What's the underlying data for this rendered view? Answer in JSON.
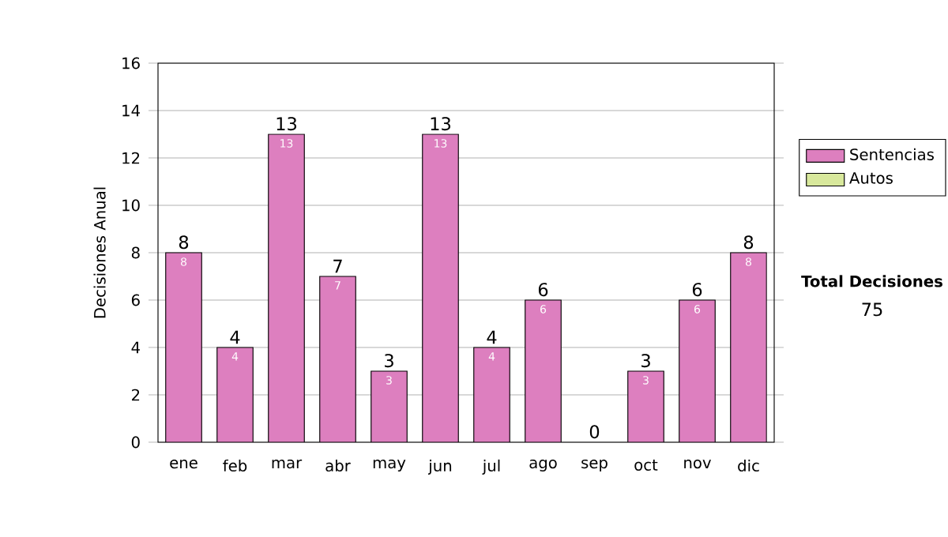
{
  "chart_data": {
    "type": "bar",
    "stacked": true,
    "ylabel": "Decisiones Anual",
    "categories": [
      "ene",
      "feb",
      "mar",
      "abr",
      "may",
      "jun",
      "jul",
      "ago",
      "sep",
      "oct",
      "nov",
      "dic"
    ],
    "series": [
      {
        "name": "Sentencias",
        "color": "#dd7fbf",
        "values": [
          8,
          4,
          13,
          7,
          3,
          13,
          4,
          6,
          0,
          3,
          6,
          8
        ],
        "value_labels": [
          "8",
          "4",
          "13",
          "7",
          "3",
          "13",
          "4",
          "6",
          null,
          "3",
          "6",
          "8"
        ]
      },
      {
        "name": "Autos",
        "color": "#d8e89c",
        "values": [
          0,
          0,
          0,
          0,
          0,
          0,
          0,
          0,
          0,
          0,
          0,
          0
        ]
      }
    ],
    "totals": [
      "8",
      "4",
      "13",
      "7",
      "3",
      "13",
      "4",
      "6",
      "0",
      "3",
      "6",
      "8"
    ],
    "ylim": [
      0,
      16
    ],
    "yticks": [
      0,
      2,
      4,
      6,
      8,
      10,
      12,
      14,
      16
    ],
    "grid": "y",
    "legend": "right",
    "annotations": [
      "Total Decisiones",
      "75"
    ]
  }
}
